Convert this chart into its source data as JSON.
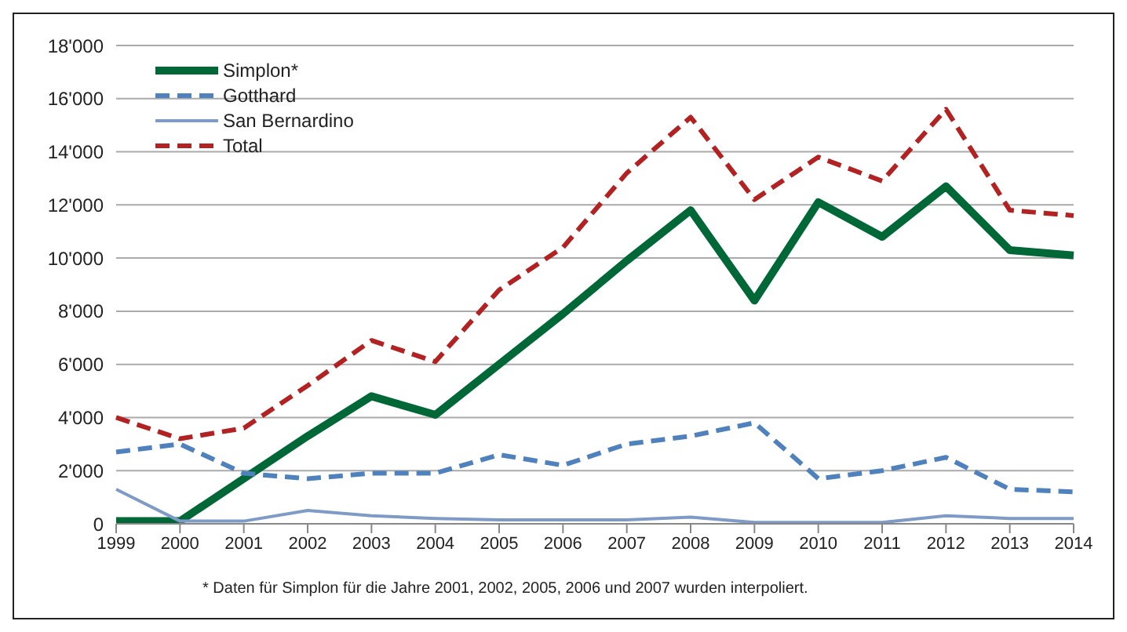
{
  "chart_data": {
    "type": "line",
    "categories": [
      "1999",
      "2000",
      "2001",
      "2002",
      "2003",
      "2004",
      "2005",
      "2006",
      "2007",
      "2008",
      "2009",
      "2010",
      "2011",
      "2012",
      "2013",
      "2014"
    ],
    "series": [
      {
        "name": "Simplon*",
        "color": "#006837",
        "line_style": "solid",
        "values": [
          100,
          100,
          1700,
          3300,
          4800,
          4100,
          6000,
          7900,
          9900,
          11800,
          8400,
          12100,
          10800,
          12700,
          10300,
          10100
        ]
      },
      {
        "name": "Gotthard",
        "color": "#4f81bd",
        "line_style": "dashed",
        "values": [
          2700,
          3000,
          1900,
          1700,
          1900,
          1900,
          2600,
          2200,
          3000,
          3300,
          3800,
          1700,
          2000,
          2500,
          1300,
          1200
        ]
      },
      {
        "name": "San Bernardino",
        "color": "#7e9bc8",
        "line_style": "solid",
        "values": [
          1300,
          100,
          100,
          500,
          300,
          200,
          150,
          150,
          150,
          250,
          50,
          50,
          50,
          300,
          200,
          200
        ]
      },
      {
        "name": "Total",
        "color": "#b22222",
        "line_style": "dashed",
        "values": [
          4000,
          3200,
          3600,
          5200,
          6900,
          6100,
          8800,
          10400,
          13200,
          15300,
          12200,
          13800,
          12900,
          15600,
          11800,
          11600
        ]
      }
    ],
    "ylim": [
      0,
      18000
    ],
    "yticks": [
      0,
      {
        "value": 2000,
        "label": "2'000"
      },
      {
        "value": 4000,
        "label": "4'000"
      },
      {
        "value": 6000,
        "label": "6'000"
      },
      {
        "value": 8000,
        "label": "8'000"
      },
      {
        "value": 10000,
        "label": "10'000"
      },
      {
        "value": 12000,
        "label": "12'000"
      },
      {
        "value": 14000,
        "label": "14'000"
      },
      {
        "value": 16000,
        "label": "16'000"
      },
      {
        "value": 18000,
        "label": "18'000"
      }
    ],
    "grid": "y",
    "legend": "top left",
    "marker": "none",
    "annotations": [
      "* Daten für Simplon für die Jahre 2001, 2002, 2005, 2006 und 2007 wurden interpoliert."
    ]
  }
}
